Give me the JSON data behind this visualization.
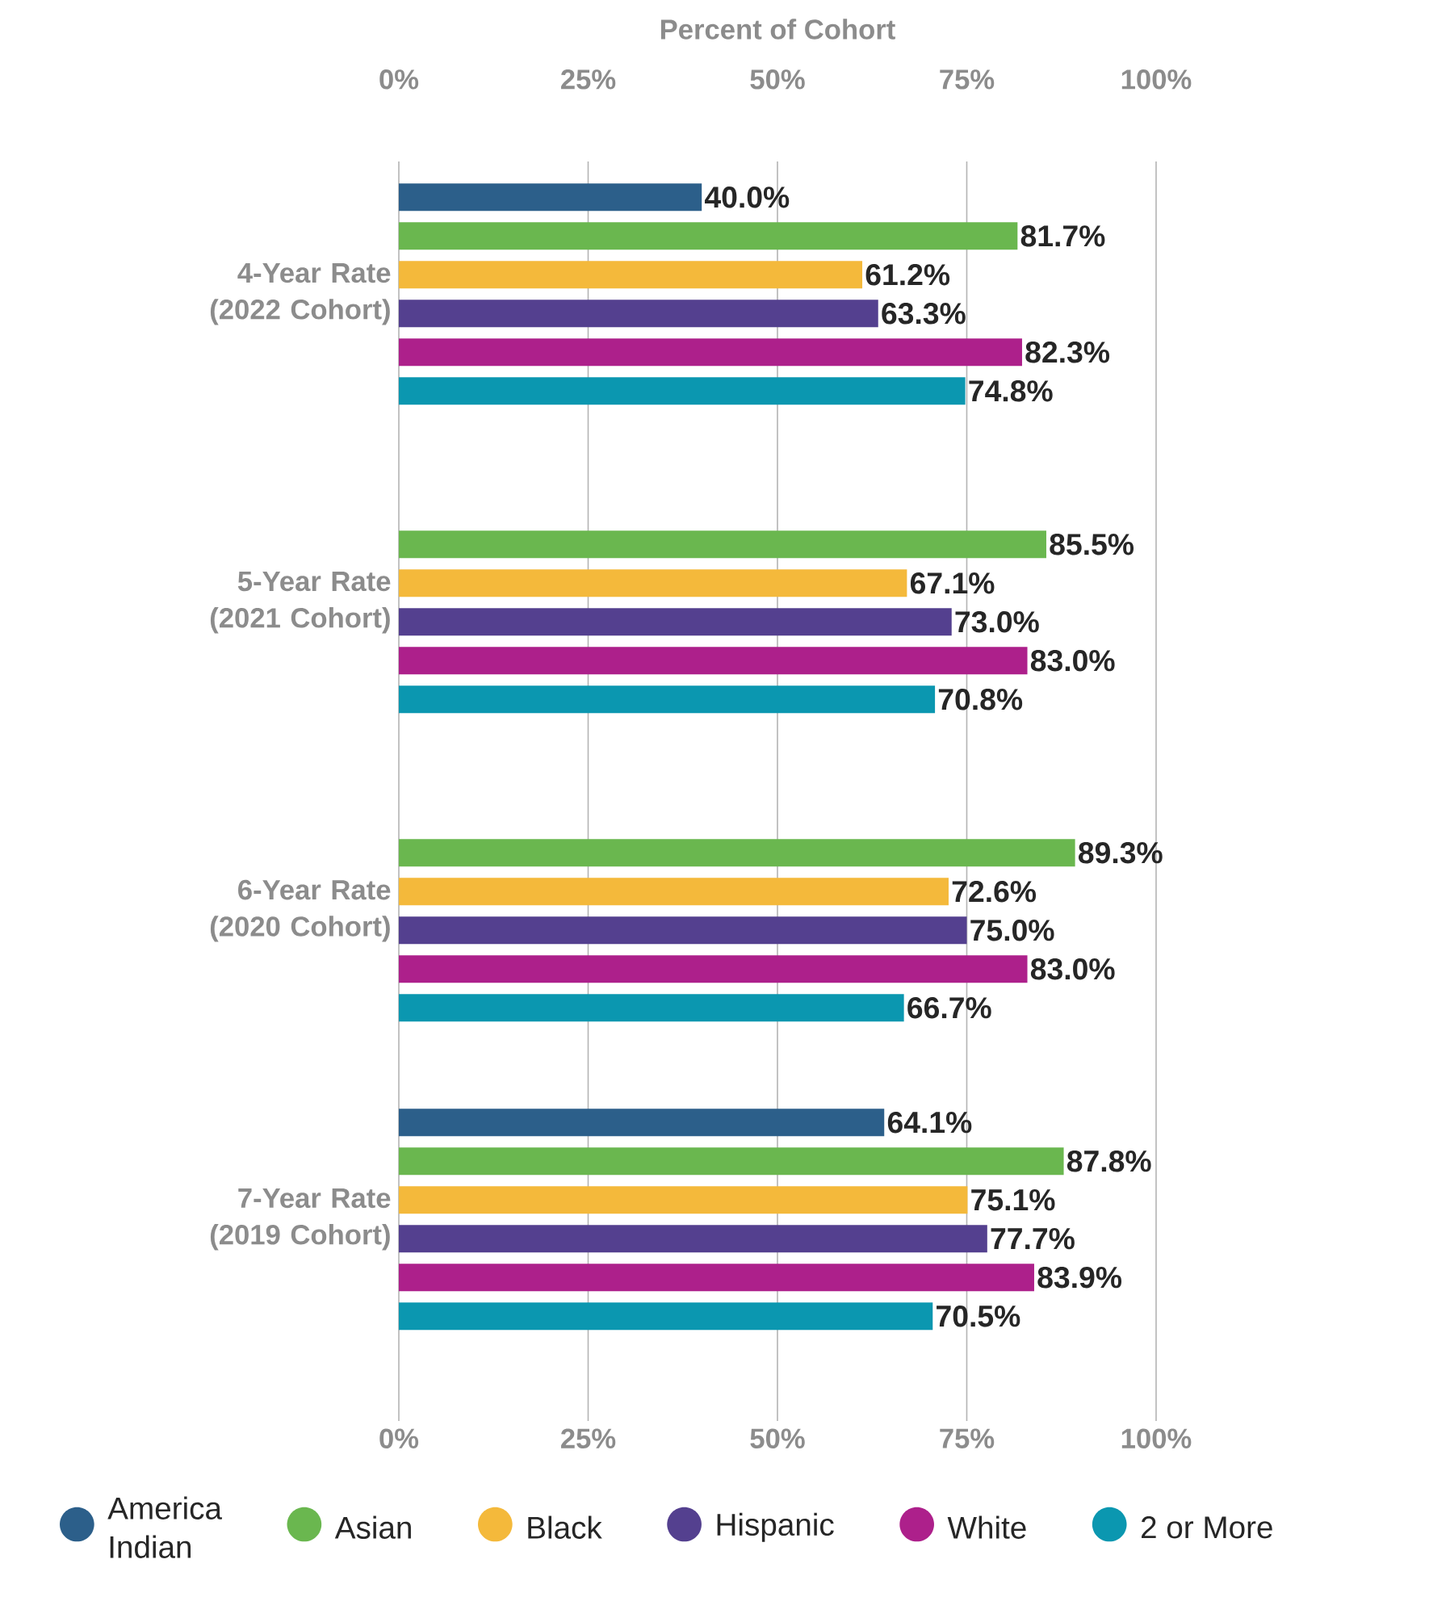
{
  "chart_data": {
    "type": "bar",
    "orientation": "horizontal",
    "x2label": "Percent of Cohort",
    "categories": [
      "4-Year Rate (2022 Cohort)",
      "5-Year Rate (2021 Cohort)",
      "6-Year Rate (2020 Cohort)",
      "7-Year Rate (2019 Cohort)"
    ],
    "series": [
      {
        "name": "America Indian",
        "color": "#2c5f8a",
        "values": [
          40.0,
          null,
          null,
          64.1
        ],
        "value_labels": [
          "40.0%",
          null,
          null,
          "64.1%"
        ]
      },
      {
        "name": "Asian",
        "color": "#6ab74f",
        "values": [
          81.7,
          85.5,
          89.3,
          87.8
        ],
        "value_labels": [
          "81.7%",
          "85.5%",
          "89.3%",
          "87.8%"
        ]
      },
      {
        "name": "Black",
        "color": "#f4b93b",
        "values": [
          61.2,
          67.1,
          72.6,
          75.1
        ],
        "value_labels": [
          "61.2%",
          "67.1%",
          "72.6%",
          "75.1%"
        ]
      },
      {
        "name": "Hispanic",
        "color": "#54408f",
        "values": [
          63.3,
          73.0,
          75.0,
          77.7
        ],
        "value_labels": [
          "63.3%",
          "73.0%",
          "75.0%",
          "77.7%"
        ]
      },
      {
        "name": "White",
        "color": "#ad208b",
        "values": [
          82.3,
          83.0,
          83.0,
          83.9
        ],
        "value_labels": [
          "82.3%",
          "83.0%",
          "83.0%",
          "83.9%"
        ]
      },
      {
        "name": "2 or More",
        "color": "#0b97b0",
        "values": [
          74.8,
          70.8,
          66.7,
          70.5
        ],
        "value_labels": [
          "74.8%",
          "70.8%",
          "66.7%",
          "70.5%"
        ]
      }
    ],
    "xlim": [
      0,
      100
    ],
    "xticks": [
      {
        "value": 0,
        "label": "0%"
      },
      {
        "value": 25,
        "label": "25%"
      },
      {
        "value": 50,
        "label": "50%"
      },
      {
        "value": 75,
        "label": "75%"
      },
      {
        "value": 100,
        "label": "100%"
      }
    ],
    "x2lim": [
      0,
      100
    ],
    "x2ticks": [
      {
        "value": 0,
        "label": "0%"
      },
      {
        "value": 25,
        "label": "25%"
      },
      {
        "value": 50,
        "label": "50%"
      },
      {
        "value": 75,
        "label": "75%"
      },
      {
        "value": 100,
        "label": "100%"
      }
    ],
    "grid": "x",
    "legend": "bottom"
  }
}
